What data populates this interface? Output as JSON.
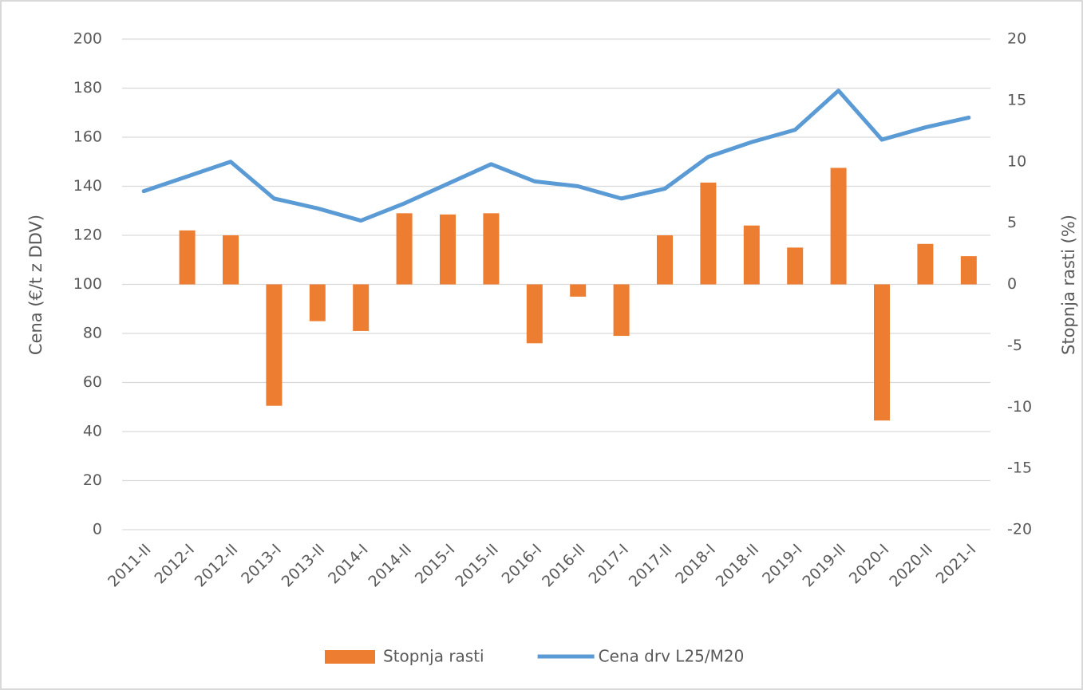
{
  "chart_data": {
    "type": "combo",
    "categories": [
      "2011-II",
      "2012-I",
      "2012-II",
      "2013-I",
      "2013-II",
      "2014-I",
      "2014-II",
      "2015-I",
      "2015-II",
      "2016-I",
      "2016-II",
      "2017-I",
      "2017-II",
      "2018-I",
      "2018-II",
      "2019-I",
      "2019-II",
      "2020-I",
      "2020-II",
      "2021-I"
    ],
    "series": [
      {
        "name": "Stopnja rasti",
        "type": "bar",
        "axis": "y2",
        "color": "#ed7d31",
        "values": [
          null,
          4.4,
          4.0,
          -9.9,
          -3.0,
          -3.8,
          5.8,
          5.7,
          5.8,
          -4.8,
          -1.0,
          -4.2,
          4.0,
          8.3,
          4.8,
          3.0,
          9.5,
          -11.1,
          3.3,
          2.3
        ]
      },
      {
        "name": "Cena drv L25/M20",
        "type": "line",
        "axis": "y",
        "color": "#5b9bd5",
        "values": [
          138,
          144,
          150,
          135,
          131,
          126,
          133,
          141,
          149,
          142,
          140,
          135,
          139,
          152,
          158,
          163,
          179,
          159,
          164,
          168
        ]
      }
    ],
    "ylabel": "Cena (€/t z DDV)",
    "y2label": "Stopnja rasti (%)",
    "ylim": [
      0,
      200
    ],
    "yticks": [
      0,
      20,
      40,
      60,
      80,
      100,
      120,
      140,
      160,
      180,
      200
    ],
    "y2lim": [
      -20,
      20
    ],
    "y2ticks": [
      -20,
      -15,
      -10,
      -5,
      0,
      5,
      10,
      15,
      20
    ],
    "grid": true,
    "legend": "bottom"
  }
}
